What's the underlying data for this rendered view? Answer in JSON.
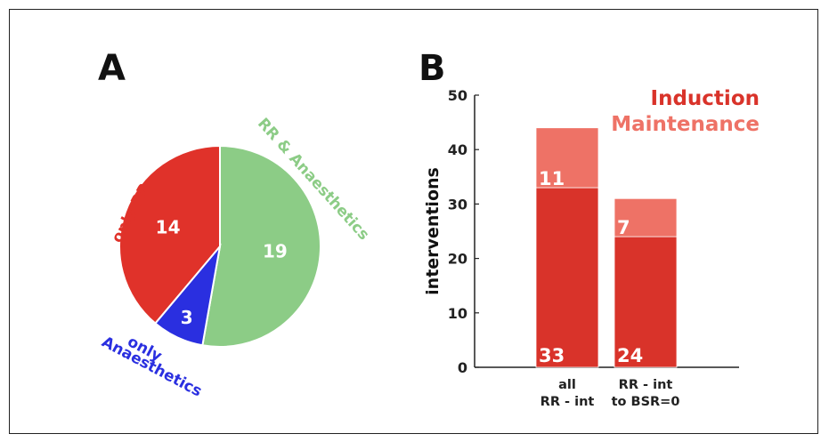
{
  "panels": {
    "a": "A",
    "b": "B"
  },
  "colors": {
    "induction": "#d9332a",
    "maintenance": "#ee7266",
    "only_rr": "#e0322a",
    "only_anaesthetics": "#2a2fe0",
    "rr_and_anaesthetics": "#8ccc86"
  },
  "chart_data": [
    {
      "type": "pie",
      "slices": [
        {
          "label": "only RR",
          "value": 14,
          "color": "#e0322a"
        },
        {
          "label": "only Anaesthetics",
          "value": 3,
          "color": "#2a2fe0"
        },
        {
          "label": "RR & Anaesthetics",
          "value": 19,
          "color": "#8ccc86"
        }
      ],
      "label_lines": {
        "only_rr": "only RR",
        "only_anaesthetics_1": "only",
        "only_anaesthetics_2": "Anaesthetics",
        "rr_and_anaesthetics": "RR & Anaesthetics"
      }
    },
    {
      "type": "bar",
      "stacked": true,
      "categories": [
        [
          "all",
          "RR - int"
        ],
        [
          "RR - int",
          "to BSR=0"
        ]
      ],
      "series": [
        {
          "name": "Induction",
          "values": [
            33,
            24
          ],
          "color": "#d9332a"
        },
        {
          "name": "Maintenance",
          "values": [
            11,
            7
          ],
          "color": "#ee7266"
        }
      ],
      "ylabel": "interventions",
      "ylim": [
        0,
        50
      ],
      "yticks": [
        0,
        10,
        20,
        30,
        40,
        50
      ],
      "grid": false,
      "legend_position": "top-right"
    }
  ]
}
